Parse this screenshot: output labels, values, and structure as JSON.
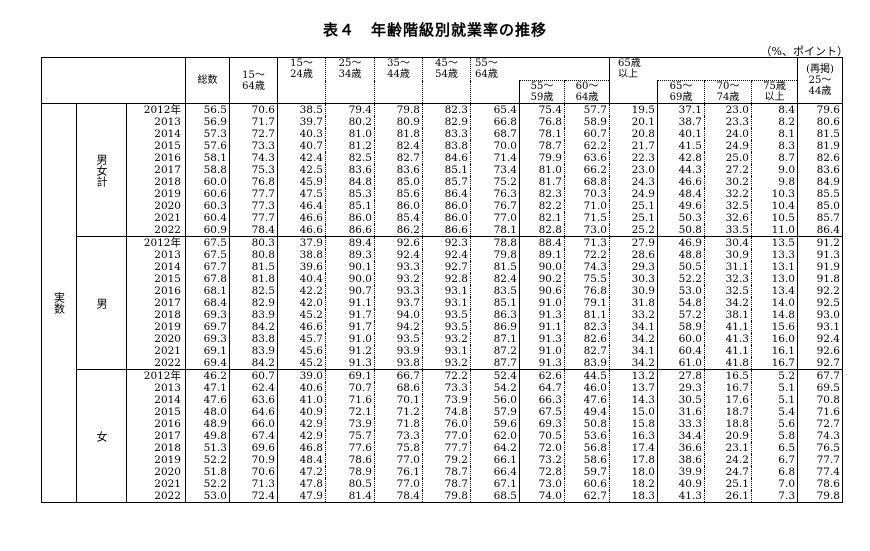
{
  "title": "表４　年齢階級別就業率の推移",
  "unit": "（%、ポイント）",
  "headers": {
    "total": "総数",
    "c15_64": "15～\n64歳",
    "c15_24": "15～\n24歳",
    "c25_34": "25～\n34歳",
    "c35_44": "35～\n44歳",
    "c45_54": "45～\n54歳",
    "c55_64": "55～\n64歳",
    "c55_59": "55～\n59歳",
    "c60_64": "60～\n64歳",
    "c65plus": "65歳\n以上",
    "c65_69": "65～\n69歳",
    "c70_74": "70～\n74歳",
    "c75plus": "75歳\n以上",
    "c25_44_repost": "(再掲)\n25～\n44歳"
  },
  "labels": {
    "actual": "実数",
    "groups": [
      "男女計",
      "男",
      "女"
    ]
  },
  "groups": [
    {
      "rows": [
        {
          "year": "2012年",
          "vals": [
            "56.5",
            "70.6",
            "38.5",
            "79.4",
            "79.8",
            "82.3",
            "65.4",
            "75.4",
            "57.7",
            "19.5",
            "37.1",
            "23.0",
            "8.4",
            "79.6"
          ]
        },
        {
          "year": "2013",
          "vals": [
            "56.9",
            "71.7",
            "39.7",
            "80.2",
            "80.9",
            "82.9",
            "66.8",
            "76.8",
            "58.9",
            "20.1",
            "38.7",
            "23.3",
            "8.2",
            "80.6"
          ]
        },
        {
          "year": "2014",
          "vals": [
            "57.3",
            "72.7",
            "40.3",
            "81.0",
            "81.8",
            "83.3",
            "68.7",
            "78.1",
            "60.7",
            "20.8",
            "40.1",
            "24.0",
            "8.1",
            "81.5"
          ]
        },
        {
          "year": "2015",
          "vals": [
            "57.6",
            "73.3",
            "40.7",
            "81.2",
            "82.4",
            "83.8",
            "70.0",
            "78.7",
            "62.2",
            "21.7",
            "41.5",
            "24.9",
            "8.3",
            "81.9"
          ]
        },
        {
          "year": "2016",
          "vals": [
            "58.1",
            "74.3",
            "42.4",
            "82.5",
            "82.7",
            "84.6",
            "71.4",
            "79.9",
            "63.6",
            "22.3",
            "42.8",
            "25.0",
            "8.7",
            "82.6"
          ]
        },
        {
          "year": "2017",
          "vals": [
            "58.8",
            "75.3",
            "42.5",
            "83.6",
            "83.6",
            "85.1",
            "73.4",
            "81.0",
            "66.2",
            "23.0",
            "44.3",
            "27.2",
            "9.0",
            "83.6"
          ]
        },
        {
          "year": "2018",
          "vals": [
            "60.0",
            "76.8",
            "45.9",
            "84.8",
            "85.0",
            "85.7",
            "75.2",
            "81.7",
            "68.8",
            "24.3",
            "46.6",
            "30.2",
            "9.8",
            "84.9"
          ]
        },
        {
          "year": "2019",
          "vals": [
            "60.6",
            "77.7",
            "47.5",
            "85.3",
            "85.6",
            "86.4",
            "76.3",
            "82.3",
            "70.3",
            "24.9",
            "48.4",
            "32.2",
            "10.3",
            "85.5"
          ]
        },
        {
          "year": "2020",
          "vals": [
            "60.3",
            "77.3",
            "46.4",
            "85.1",
            "86.0",
            "86.0",
            "76.7",
            "82.2",
            "71.0",
            "25.1",
            "49.6",
            "32.5",
            "10.4",
            "85.0"
          ]
        },
        {
          "year": "2021",
          "vals": [
            "60.4",
            "77.7",
            "46.6",
            "86.0",
            "85.4",
            "86.0",
            "77.0",
            "82.1",
            "71.5",
            "25.1",
            "50.3",
            "32.6",
            "10.5",
            "85.7"
          ]
        },
        {
          "year": "2022",
          "vals": [
            "60.9",
            "78.4",
            "46.6",
            "86.6",
            "86.2",
            "86.6",
            "78.1",
            "82.8",
            "73.0",
            "25.2",
            "50.8",
            "33.5",
            "11.0",
            "86.4"
          ]
        }
      ]
    },
    {
      "rows": [
        {
          "year": "2012年",
          "vals": [
            "67.5",
            "80.3",
            "37.9",
            "89.4",
            "92.6",
            "92.3",
            "78.8",
            "88.4",
            "71.3",
            "27.9",
            "46.9",
            "30.4",
            "13.5",
            "91.2"
          ]
        },
        {
          "year": "2013",
          "vals": [
            "67.5",
            "80.8",
            "38.8",
            "89.3",
            "92.4",
            "92.4",
            "79.8",
            "89.1",
            "72.2",
            "28.6",
            "48.8",
            "30.9",
            "13.3",
            "91.3"
          ]
        },
        {
          "year": "2014",
          "vals": [
            "67.7",
            "81.5",
            "39.6",
            "90.1",
            "93.3",
            "92.7",
            "81.5",
            "90.0",
            "74.3",
            "29.3",
            "50.5",
            "31.1",
            "13.1",
            "91.9"
          ]
        },
        {
          "year": "2015",
          "vals": [
            "67.8",
            "81.8",
            "40.4",
            "90.0",
            "93.2",
            "92.8",
            "82.4",
            "90.2",
            "75.5",
            "30.3",
            "52.2",
            "32.3",
            "13.0",
            "91.8"
          ]
        },
        {
          "year": "2016",
          "vals": [
            "68.1",
            "82.5",
            "42.2",
            "90.7",
            "93.3",
            "93.1",
            "83.5",
            "90.6",
            "76.8",
            "30.9",
            "53.0",
            "32.5",
            "13.4",
            "92.2"
          ]
        },
        {
          "year": "2017",
          "vals": [
            "68.4",
            "82.9",
            "42.0",
            "91.1",
            "93.7",
            "93.1",
            "85.1",
            "91.0",
            "79.1",
            "31.8",
            "54.8",
            "34.2",
            "14.0",
            "92.5"
          ]
        },
        {
          "year": "2018",
          "vals": [
            "69.3",
            "83.9",
            "45.2",
            "91.7",
            "94.0",
            "93.5",
            "86.3",
            "91.3",
            "81.1",
            "33.2",
            "57.2",
            "38.1",
            "14.8",
            "93.0"
          ]
        },
        {
          "year": "2019",
          "vals": [
            "69.7",
            "84.2",
            "46.6",
            "91.7",
            "94.2",
            "93.5",
            "86.9",
            "91.1",
            "82.3",
            "34.1",
            "58.9",
            "41.1",
            "15.6",
            "93.1"
          ]
        },
        {
          "year": "2020",
          "vals": [
            "69.3",
            "83.8",
            "45.7",
            "91.0",
            "93.5",
            "93.2",
            "87.1",
            "91.3",
            "82.6",
            "34.2",
            "60.0",
            "41.3",
            "16.0",
            "92.4"
          ]
        },
        {
          "year": "2021",
          "vals": [
            "69.1",
            "83.9",
            "45.6",
            "91.2",
            "93.9",
            "93.1",
            "87.2",
            "91.0",
            "82.7",
            "34.1",
            "60.4",
            "41.1",
            "16.1",
            "92.6"
          ]
        },
        {
          "year": "2022",
          "vals": [
            "69.4",
            "84.2",
            "45.2",
            "91.3",
            "93.8",
            "93.2",
            "87.7",
            "91.3",
            "83.9",
            "34.2",
            "61.0",
            "41.8",
            "16.7",
            "92.7"
          ]
        }
      ]
    },
    {
      "rows": [
        {
          "year": "2012年",
          "vals": [
            "46.2",
            "60.7",
            "39.0",
            "69.1",
            "66.7",
            "72.2",
            "52.4",
            "62.6",
            "44.5",
            "13.2",
            "27.8",
            "16.5",
            "5.2",
            "67.7"
          ]
        },
        {
          "year": "2013",
          "vals": [
            "47.1",
            "62.4",
            "40.6",
            "70.7",
            "68.6",
            "73.3",
            "54.2",
            "64.7",
            "46.0",
            "13.7",
            "29.3",
            "16.7",
            "5.1",
            "69.5"
          ]
        },
        {
          "year": "2014",
          "vals": [
            "47.6",
            "63.6",
            "41.0",
            "71.6",
            "70.1",
            "73.9",
            "56.0",
            "66.3",
            "47.6",
            "14.3",
            "30.5",
            "17.6",
            "5.1",
            "70.8"
          ]
        },
        {
          "year": "2015",
          "vals": [
            "48.0",
            "64.6",
            "40.9",
            "72.1",
            "71.2",
            "74.8",
            "57.9",
            "67.5",
            "49.4",
            "15.0",
            "31.6",
            "18.7",
            "5.4",
            "71.6"
          ]
        },
        {
          "year": "2016",
          "vals": [
            "48.9",
            "66.0",
            "42.9",
            "73.9",
            "71.8",
            "76.0",
            "59.6",
            "69.3",
            "50.8",
            "15.8",
            "33.3",
            "18.8",
            "5.6",
            "72.7"
          ]
        },
        {
          "year": "2017",
          "vals": [
            "49.8",
            "67.4",
            "42.9",
            "75.7",
            "73.3",
            "77.0",
            "62.0",
            "70.5",
            "53.6",
            "16.3",
            "34.4",
            "20.9",
            "5.8",
            "74.3"
          ]
        },
        {
          "year": "2018",
          "vals": [
            "51.3",
            "69.6",
            "46.8",
            "77.6",
            "75.8",
            "77.7",
            "64.2",
            "72.0",
            "56.8",
            "17.4",
            "36.6",
            "23.1",
            "6.5",
            "76.5"
          ]
        },
        {
          "year": "2019",
          "vals": [
            "52.2",
            "70.9",
            "48.4",
            "78.6",
            "77.0",
            "79.2",
            "66.1",
            "73.2",
            "58.6",
            "17.8",
            "38.6",
            "24.2",
            "6.7",
            "77.7"
          ]
        },
        {
          "year": "2020",
          "vals": [
            "51.8",
            "70.6",
            "47.2",
            "78.9",
            "76.1",
            "78.7",
            "66.4",
            "72.8",
            "59.7",
            "18.0",
            "39.9",
            "24.7",
            "6.8",
            "77.4"
          ]
        },
        {
          "year": "2021",
          "vals": [
            "52.2",
            "71.3",
            "47.8",
            "80.5",
            "77.0",
            "78.7",
            "67.1",
            "73.0",
            "60.6",
            "18.2",
            "40.9",
            "25.1",
            "7.0",
            "78.6"
          ]
        },
        {
          "year": "2022",
          "vals": [
            "53.0",
            "72.4",
            "47.9",
            "81.4",
            "78.4",
            "79.8",
            "68.5",
            "74.0",
            "62.7",
            "18.3",
            "41.3",
            "26.1",
            "7.3",
            "79.8"
          ]
        }
      ]
    }
  ]
}
